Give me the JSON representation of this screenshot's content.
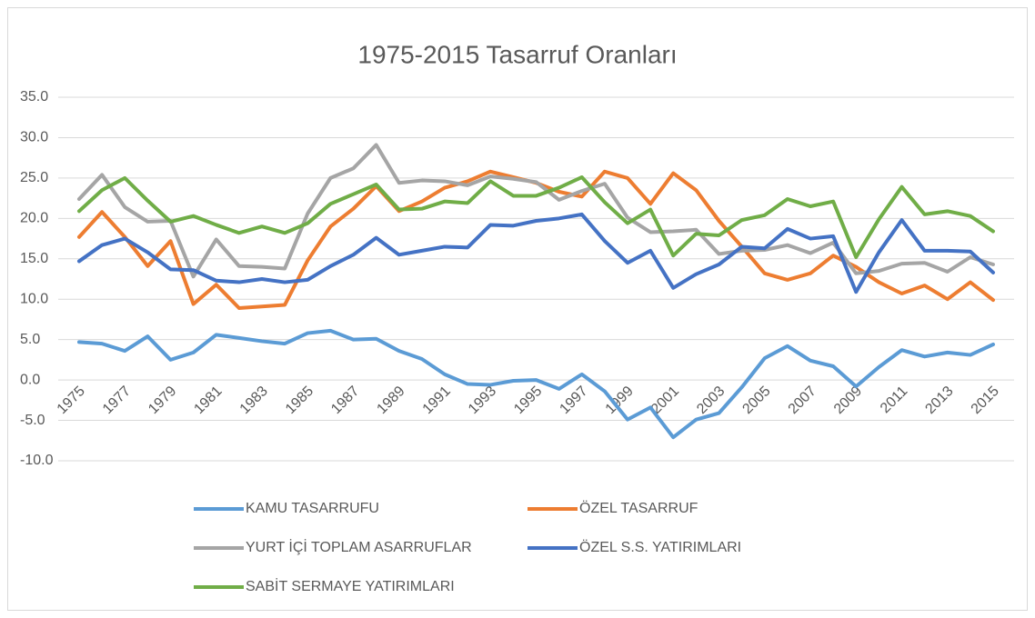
{
  "chart_data": {
    "type": "line",
    "title": "1975-2015 Tasarruf Oranları",
    "categories": [
      "1975",
      null,
      "1977",
      null,
      "1979",
      null,
      "1981",
      null,
      "1983",
      null,
      "1985",
      null,
      "1987",
      null,
      "1989",
      null,
      "1991",
      null,
      "1993",
      null,
      "1995",
      null,
      "1997",
      null,
      "1999",
      null,
      "2001",
      null,
      "2003",
      null,
      "2005",
      null,
      "2007",
      null,
      "2009",
      null,
      "2011",
      null,
      "2013",
      null,
      "2015"
    ],
    "ylim": [
      -10,
      35
    ],
    "yticks": [
      {
        "value": -10,
        "label": "-10.0"
      },
      {
        "value": -5,
        "label": "-5.0"
      },
      {
        "value": 0,
        "label": "0.0"
      },
      {
        "value": 5,
        "label": "5.0"
      },
      {
        "value": 10,
        "label": "10.0"
      },
      {
        "value": 15,
        "label": "15.0"
      },
      {
        "value": 20,
        "label": "20.0"
      },
      {
        "value": 25,
        "label": "25.0"
      },
      {
        "value": 30,
        "label": "30.0"
      },
      {
        "value": 35,
        "label": "35.0"
      }
    ],
    "grid": true,
    "legend": "bottom",
    "series": [
      {
        "name": "KAMU  TASARRUFU",
        "color": "#5b9bd5",
        "values": [
          4.7,
          4.5,
          3.6,
          5.4,
          2.5,
          3.4,
          5.6,
          5.2,
          4.8,
          4.5,
          5.8,
          6.1,
          5.0,
          5.1,
          3.6,
          2.6,
          0.7,
          -0.5,
          -0.6,
          -0.1,
          0.0,
          -1.1,
          0.7,
          -1.4,
          -4.9,
          -3.4,
          -7.1,
          -4.9,
          -4.1,
          -0.9,
          2.7,
          4.2,
          2.4,
          1.7,
          -0.8,
          1.6,
          3.7,
          2.9,
          3.4,
          3.1,
          4.4
        ]
      },
      {
        "name": "ÖZEL  TASARRUF",
        "color": "#ed7d31",
        "values": [
          17.7,
          20.8,
          17.7,
          14.1,
          17.2,
          9.4,
          11.8,
          8.9,
          9.1,
          9.3,
          14.8,
          19.0,
          21.2,
          24.0,
          20.9,
          22.1,
          23.8,
          24.6,
          25.8,
          25.1,
          24.4,
          23.3,
          22.7,
          25.8,
          25.0,
          21.8,
          25.6,
          23.5,
          19.7,
          16.5,
          13.2,
          12.4,
          13.2,
          15.4,
          14.0,
          12.1,
          10.7,
          11.7,
          10.0,
          12.1,
          9.9
        ]
      },
      {
        "name": "YURT İÇİ TOPLAM ASARRUFLAR",
        "color": "#a5a5a5",
        "values": [
          22.4,
          25.4,
          21.4,
          19.6,
          19.7,
          12.8,
          17.4,
          14.1,
          14.0,
          13.8,
          20.6,
          25.0,
          26.2,
          29.1,
          24.4,
          24.7,
          24.6,
          24.1,
          25.2,
          24.9,
          24.5,
          22.3,
          23.4,
          24.3,
          20.1,
          18.3,
          18.4,
          18.6,
          15.6,
          16.0,
          16.1,
          16.7,
          15.7,
          17.0,
          13.2,
          13.5,
          14.4,
          14.5,
          13.4,
          15.2,
          14.3
        ]
      },
      {
        "name": "ÖZEL S.S. YATIRIMLARI",
        "color": "#4472c4",
        "values": [
          14.7,
          16.7,
          17.5,
          15.8,
          13.7,
          13.6,
          12.3,
          12.1,
          12.5,
          12.1,
          12.4,
          14.1,
          15.5,
          17.6,
          15.5,
          16.0,
          16.5,
          16.4,
          19.2,
          19.1,
          19.7,
          20.0,
          20.5,
          17.2,
          14.5,
          16.0,
          11.4,
          13.1,
          14.3,
          16.5,
          16.3,
          18.7,
          17.5,
          17.8,
          10.9,
          15.8,
          19.8,
          16.0,
          16.0,
          15.9,
          13.3
        ]
      },
      {
        "name": "SABİT SERMAYE YATIRIMLARI",
        "color": "#70ad47",
        "values": [
          20.9,
          23.5,
          25.0,
          22.2,
          19.6,
          20.3,
          19.2,
          18.2,
          19.0,
          18.2,
          19.4,
          21.8,
          23.0,
          24.2,
          21.1,
          21.2,
          22.1,
          21.9,
          24.6,
          22.8,
          22.8,
          23.8,
          25.1,
          22.0,
          19.4,
          21.1,
          15.4,
          18.1,
          17.9,
          19.8,
          20.4,
          22.4,
          21.5,
          22.1,
          15.2,
          19.9,
          23.9,
          20.5,
          20.9,
          20.3,
          18.4
        ]
      }
    ]
  }
}
